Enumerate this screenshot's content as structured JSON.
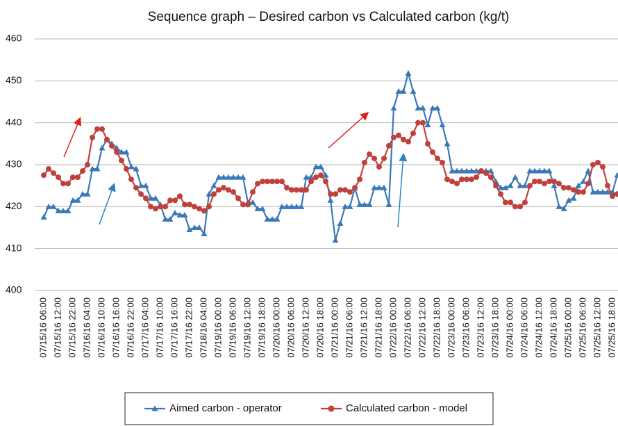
{
  "chart_data": {
    "type": "line",
    "title": "Sequence graph – Desired carbon vs Calculated carbon (kg/t)",
    "categories": [
      "07/15/16 06:00",
      null,
      null,
      "07/15/16 12:00",
      null,
      null,
      "07/15/16 22:00",
      null,
      null,
      "07/16/16 04:00",
      null,
      null,
      "07/16/16 10:00",
      null,
      null,
      "07/16/16 16:00",
      null,
      null,
      "07/16/16 22:00",
      null,
      null,
      "07/17/16 04:00",
      null,
      null,
      "07/17/16 10:00",
      null,
      null,
      "07/17/16 16:00",
      null,
      null,
      "07/17/16 22:00",
      null,
      null,
      "07/18/16 04:00",
      null,
      null,
      "07/19/16 00:00",
      null,
      null,
      "07/19/16 06:00",
      null,
      null,
      "07/19/16 12:00",
      null,
      null,
      "07/19/16 18:00",
      null,
      null,
      "07/20/16 00:00",
      null,
      null,
      "07/20/16 06:00",
      null,
      null,
      "07/20/16 12:00",
      null,
      null,
      "07/20/16 18:00",
      null,
      null,
      "07/21/16 00:00",
      null,
      null,
      "07/21/16 06:00",
      null,
      null,
      "07/21/16 12:00",
      null,
      null,
      "07/21/16 18:00",
      null,
      null,
      "07/22/16 00:00",
      null,
      null,
      "07/22/16 06:00",
      null,
      null,
      "07/22/16 12:00",
      null,
      null,
      "07/22/16 18:00",
      null,
      null,
      "07/23/16 00:00",
      null,
      null,
      "07/23/16 06:00",
      null,
      null,
      "07/23/16 12:00",
      null,
      null,
      "07/23/16 18:00",
      null,
      null,
      "07/24/16 00:00",
      null,
      null,
      "07/24/16 06:00",
      null,
      null,
      "07/24/16 12:00",
      null,
      null,
      "07/24/16 18:00",
      null,
      null,
      "07/25/16 00:00",
      null,
      null,
      "07/25/16 06:00",
      null,
      null,
      "07/25/16 12:00",
      null,
      null,
      "07/25/16 18:00",
      null
    ],
    "series": [
      {
        "name": "Aimed carbon - operator",
        "color": "#3a78b8",
        "marker": "triangle",
        "values": [
          417.5,
          420,
          420,
          419,
          419,
          419,
          421.5,
          421.5,
          423,
          423,
          429,
          429,
          434,
          436,
          435,
          434,
          433,
          433,
          429.5,
          429,
          425,
          425,
          422,
          422,
          420.5,
          417,
          417,
          418.5,
          418,
          418,
          414.5,
          415,
          415,
          413.5,
          423,
          425,
          427,
          427,
          427,
          427,
          427,
          427,
          421,
          421,
          419.5,
          419.5,
          417,
          417,
          417,
          420,
          420,
          420,
          420,
          420,
          427,
          427,
          429.5,
          429.5,
          427.5,
          421.5,
          412,
          416,
          420,
          420,
          424.5,
          420.5,
          420.5,
          420.5,
          424.5,
          424.5,
          424.5,
          420.5,
          443.5,
          447.5,
          447.5,
          451.8,
          447.5,
          443.5,
          443.5,
          439.5,
          443.5,
          443.5,
          439.5,
          435,
          428.5,
          428.5,
          428.5,
          428.5,
          428.5,
          428.5,
          428.5,
          428.5,
          428.5,
          426,
          424.5,
          424.5,
          425,
          427,
          425,
          425,
          428.5,
          428.5,
          428.5,
          428.5,
          428.5,
          425,
          420,
          419.5,
          421.5,
          422,
          425,
          426,
          428.5,
          423.5,
          423.5,
          423.5,
          423.5,
          423.5,
          427.5
        ]
      },
      {
        "name": "Calculated carbon - model",
        "color": "#c0413b",
        "marker": "circle",
        "values": [
          427.5,
          429,
          428,
          427,
          425.5,
          425.5,
          427,
          427,
          428.5,
          430,
          436.5,
          438.5,
          438.5,
          436,
          434.5,
          433,
          431,
          429,
          426.5,
          424.5,
          423,
          422,
          420,
          419.5,
          420,
          420,
          421.5,
          421.5,
          422.5,
          420.5,
          420.5,
          420,
          419.5,
          419,
          420,
          423,
          424,
          424.5,
          424,
          423.5,
          422,
          420.5,
          420.5,
          423.5,
          425.5,
          426,
          426,
          426,
          426,
          426,
          424.5,
          424,
          424,
          424,
          424,
          426,
          427,
          427.5,
          426,
          423,
          423,
          424,
          424,
          423.5,
          424.5,
          426.5,
          430.5,
          432.5,
          431.5,
          429.5,
          431.5,
          434.5,
          436.5,
          437,
          436,
          435.5,
          437.5,
          440,
          440,
          435,
          433,
          431.5,
          430.5,
          426.5,
          426,
          425.5,
          426.5,
          426.5,
          426.5,
          427,
          428.5,
          428,
          427,
          425,
          423,
          421,
          421,
          420,
          420,
          421,
          425,
          426,
          426,
          425.5,
          426,
          426,
          425.5,
          424.5,
          424.5,
          424,
          423.5,
          423.5,
          425.5,
          430,
          430.5,
          429.5,
          425,
          422.5,
          423
        ]
      }
    ],
    "ylim": [
      400,
      460
    ],
    "yticks": [
      400,
      410,
      420,
      430,
      440,
      450,
      460
    ],
    "grid": true
  }
}
